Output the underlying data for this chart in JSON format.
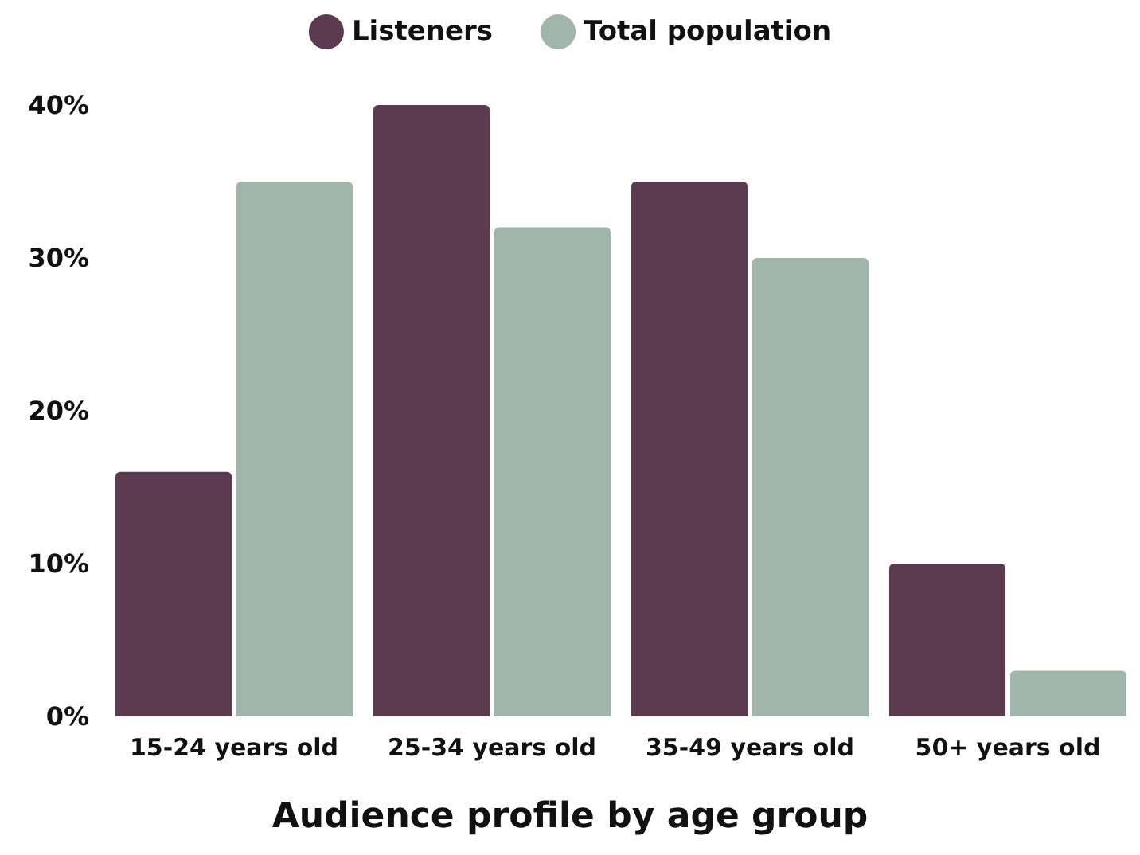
{
  "chart_data": {
    "type": "bar",
    "title": "Audience profile by age group",
    "categories": [
      "15-24 years old",
      "25-34 years old",
      "35-49 years old",
      "50+ years old"
    ],
    "series": [
      {
        "name": "Listeners",
        "color": "#5c3a4f",
        "values": [
          16,
          40,
          35,
          10
        ]
      },
      {
        "name": "Total population",
        "color": "#a0b5ab",
        "values": [
          35,
          32,
          30,
          3
        ]
      }
    ],
    "ylim": [
      0,
      40
    ],
    "yticks": [
      {
        "value": 0,
        "label": "0%"
      },
      {
        "value": 10,
        "label": "10%"
      },
      {
        "value": 20,
        "label": "20%"
      },
      {
        "value": 30,
        "label": "30%"
      },
      {
        "value": 40,
        "label": "40%"
      }
    ],
    "grid": false,
    "legend": "top"
  }
}
